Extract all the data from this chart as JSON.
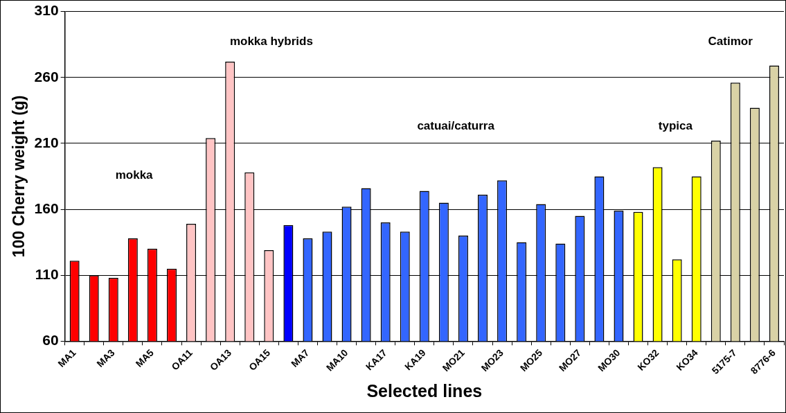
{
  "chart_data": {
    "type": "bar",
    "xlabel": "Selected lines",
    "ylabel": "100 Cherry weight (g)",
    "categories": [
      "MA1",
      null,
      "MA3",
      null,
      "MA5",
      null,
      "OA11",
      null,
      "OA13",
      null,
      "OA15",
      null,
      "MA7",
      null,
      "MA10",
      null,
      "KA17",
      null,
      "KA19",
      null,
      "MO21",
      null,
      "MO23",
      null,
      "MO25",
      null,
      "MO27",
      null,
      "MO30",
      null,
      "KO32",
      null,
      "KO34",
      null,
      "5175-7",
      null,
      "8776-6"
    ],
    "values": [
      121,
      110,
      108,
      138,
      130,
      115,
      149,
      214,
      272,
      188,
      129,
      148,
      138,
      143,
      162,
      176,
      150,
      143,
      174,
      165,
      140,
      171,
      182,
      135,
      164,
      134,
      155,
      185,
      159,
      158,
      192,
      122,
      185,
      212,
      256,
      237,
      269
    ],
    "colors": [
      "#ff0000",
      "#ff0000",
      "#ff0000",
      "#ff0000",
      "#ff0000",
      "#ff0000",
      "#ffc4c4",
      "#ffc4c4",
      "#ffc4c4",
      "#ffc4c4",
      "#ffc4c4",
      "#0000ff",
      "#3366ff",
      "#3366ff",
      "#3366ff",
      "#3366ff",
      "#3366ff",
      "#3366ff",
      "#3366ff",
      "#3366ff",
      "#3366ff",
      "#3366ff",
      "#3366ff",
      "#3366ff",
      "#3366ff",
      "#3366ff",
      "#3366ff",
      "#3366ff",
      "#3366ff",
      "#ffff00",
      "#ffff00",
      "#ffff00",
      "#ffff00",
      "#d9d2a6",
      "#d9d2a6",
      "#d9d2a6",
      "#d9d2a6"
    ],
    "ylim": [
      60,
      310
    ],
    "yticks": [
      60,
      110,
      160,
      210,
      260,
      310
    ],
    "grid": "y",
    "legend": false,
    "annotations": [
      "mokka",
      "mokka hybrids",
      "catuai/caturra",
      "typica",
      "Catimor"
    ]
  }
}
